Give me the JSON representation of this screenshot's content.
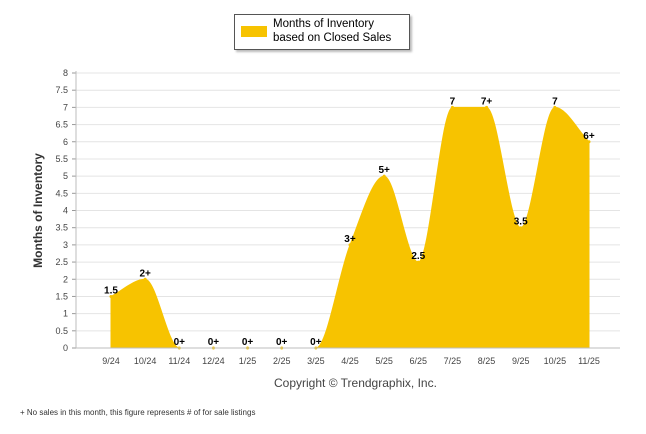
{
  "chart_data": {
    "type": "area",
    "title": "",
    "xlabel": "",
    "ylabel": "Months of Inventory",
    "ylim": [
      0,
      8
    ],
    "ytick_step": 0.5,
    "yticks": [
      "0",
      "0.5",
      "1",
      "1.5",
      "2",
      "2.5",
      "3",
      "3.5",
      "4",
      "4.5",
      "5",
      "5.5",
      "6",
      "6.5",
      "7",
      "7.5",
      "8"
    ],
    "categories": [
      "9/24",
      "10/24",
      "11/24",
      "12/24",
      "1/25",
      "2/25",
      "3/25",
      "4/25",
      "5/25",
      "6/25",
      "7/25",
      "8/25",
      "9/25",
      "10/25",
      "11/25"
    ],
    "series": [
      {
        "name": "Months of Inventory based on Closed Sales",
        "values": [
          1.5,
          2,
          0,
          0,
          0,
          0,
          0,
          3,
          5,
          2.5,
          7,
          7,
          3.5,
          7,
          6
        ],
        "labels": [
          "1.5",
          "2+",
          "0+",
          "0+",
          "0+",
          "0+",
          "0+",
          "3+",
          "5+",
          "2.5",
          "7",
          "7+",
          "3.5",
          "7",
          "6+"
        ],
        "color": "#f7c300"
      }
    ],
    "legend": {
      "label": "Months of Inventory based on Closed Sales",
      "position": "top-center"
    },
    "grid": true
  },
  "copyright": "Copyright © Trendgraphix, Inc.",
  "footnote": "+ No sales in this month, this figure represents # of for sale listings"
}
